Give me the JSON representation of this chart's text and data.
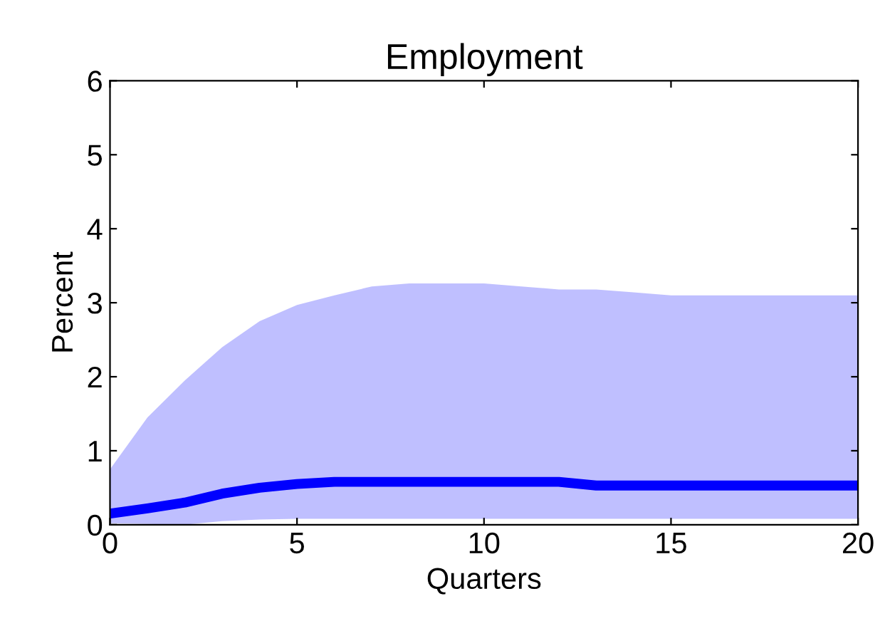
{
  "chart_data": {
    "type": "line",
    "title": "Employment",
    "xlabel": "Quarters",
    "ylabel": "Percent",
    "x": [
      0,
      1,
      2,
      3,
      4,
      5,
      6,
      7,
      8,
      9,
      10,
      11,
      12,
      13,
      14,
      15,
      16,
      17,
      18,
      19,
      20
    ],
    "series": [
      {
        "color": "#0000ff",
        "values": [
          0.15,
          0.22,
          0.3,
          0.42,
          0.5,
          0.55,
          0.58,
          0.58,
          0.58,
          0.58,
          0.58,
          0.58,
          0.58,
          0.53,
          0.53,
          0.53,
          0.53,
          0.53,
          0.53,
          0.53,
          0.53
        ],
        "lower": [
          0.02,
          0.01,
          0.0,
          0.05,
          0.07,
          0.08,
          0.08,
          0.08,
          0.08,
          0.08,
          0.08,
          0.08,
          0.08,
          0.08,
          0.08,
          0.08,
          0.08,
          0.08,
          0.08,
          0.08,
          0.08
        ],
        "upper": [
          0.75,
          1.45,
          1.95,
          2.4,
          2.75,
          2.97,
          3.1,
          3.22,
          3.26,
          3.26,
          3.26,
          3.22,
          3.18,
          3.18,
          3.14,
          3.1,
          3.1,
          3.1,
          3.1,
          3.1,
          3.1
        ]
      }
    ],
    "xlim": [
      0,
      20
    ],
    "xticks": [
      0,
      5,
      10,
      15,
      20
    ],
    "ylim": [
      0,
      6
    ],
    "yticks": [
      0,
      1,
      2,
      3,
      4,
      5,
      6
    ],
    "grid": false,
    "marker": "none",
    "line_style": "solid"
  }
}
